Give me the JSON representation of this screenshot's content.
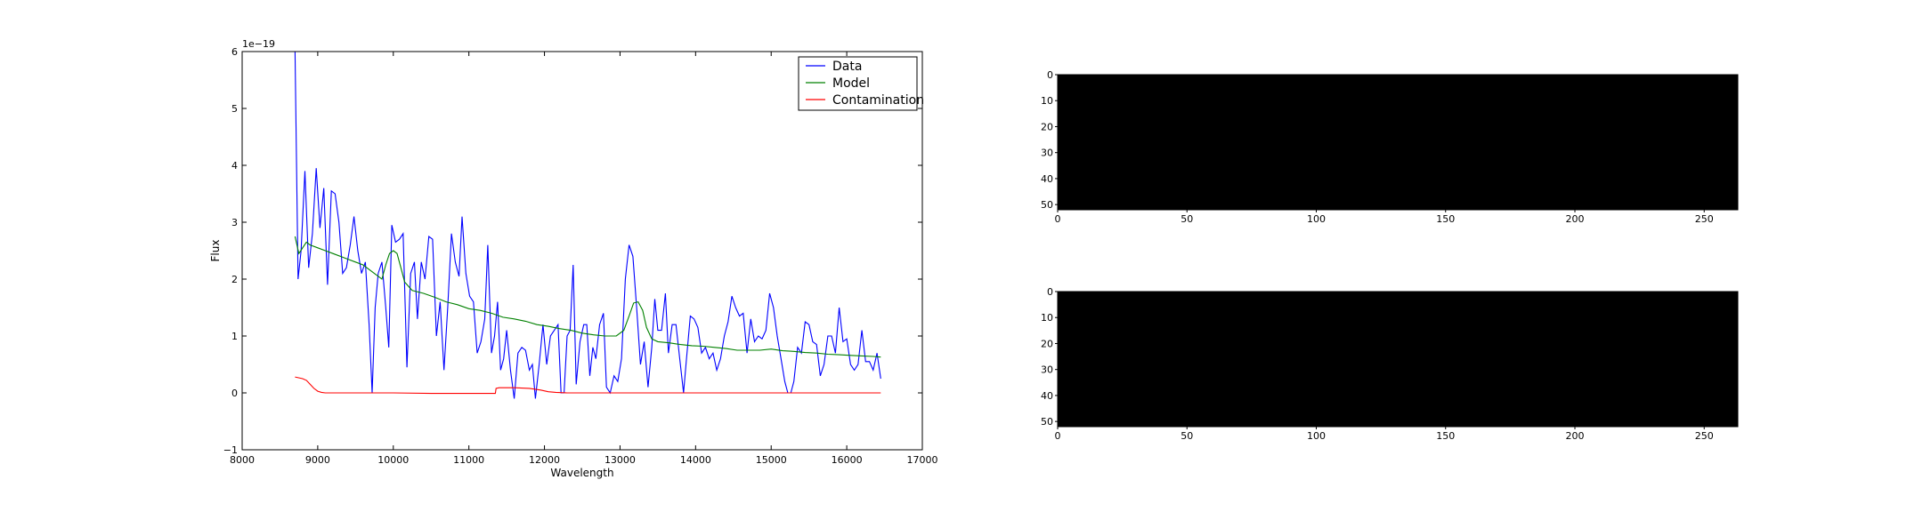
{
  "chart_data": [
    {
      "type": "line",
      "title": "",
      "xlabel": "Wavelength",
      "ylabel": "Flux",
      "xlim": [
        8000,
        17000
      ],
      "ylim": [
        -1,
        6
      ],
      "offset_text": "1e−19",
      "xticks": [
        8000,
        9000,
        10000,
        11000,
        12000,
        13000,
        14000,
        15000,
        16000,
        17000
      ],
      "yticks": [
        -1,
        0,
        1,
        2,
        3,
        4,
        5,
        6
      ],
      "grid": false,
      "legend_position": "top-right",
      "series": [
        {
          "name": "Data",
          "color": "#0000ff",
          "points": [
            [
              8700,
              6.0
            ],
            [
              8740,
              2.0
            ],
            [
              8780,
              2.5
            ],
            [
              8830,
              3.9
            ],
            [
              8880,
              2.2
            ],
            [
              8930,
              2.8
            ],
            [
              8980,
              3.95
            ],
            [
              9030,
              2.9
            ],
            [
              9080,
              3.6
            ],
            [
              9130,
              1.9
            ],
            [
              9180,
              3.55
            ],
            [
              9230,
              3.5
            ],
            [
              9280,
              3.0
            ],
            [
              9330,
              2.1
            ],
            [
              9380,
              2.2
            ],
            [
              9430,
              2.6
            ],
            [
              9480,
              3.1
            ],
            [
              9530,
              2.5
            ],
            [
              9580,
              2.1
            ],
            [
              9630,
              2.3
            ],
            [
              9680,
              1.2
            ],
            [
              9720,
              0.0
            ],
            [
              9760,
              1.5
            ],
            [
              9800,
              2.1
            ],
            [
              9850,
              2.3
            ],
            [
              9900,
              1.5
            ],
            [
              9940,
              0.8
            ],
            [
              9980,
              2.95
            ],
            [
              10030,
              2.65
            ],
            [
              10080,
              2.7
            ],
            [
              10130,
              2.8
            ],
            [
              10180,
              0.45
            ],
            [
              10230,
              2.1
            ],
            [
              10280,
              2.3
            ],
            [
              10320,
              1.3
            ],
            [
              10370,
              2.3
            ],
            [
              10420,
              2.0
            ],
            [
              10470,
              2.75
            ],
            [
              10520,
              2.7
            ],
            [
              10570,
              1.0
            ],
            [
              10620,
              1.6
            ],
            [
              10670,
              0.4
            ],
            [
              10720,
              1.5
            ],
            [
              10770,
              2.8
            ],
            [
              10820,
              2.3
            ],
            [
              10870,
              2.05
            ],
            [
              10910,
              3.1
            ],
            [
              10960,
              2.1
            ],
            [
              11010,
              1.7
            ],
            [
              11060,
              1.6
            ],
            [
              11110,
              0.7
            ],
            [
              11160,
              0.9
            ],
            [
              11210,
              1.3
            ],
            [
              11250,
              2.6
            ],
            [
              11300,
              0.7
            ],
            [
              11340,
              1.0
            ],
            [
              11380,
              1.6
            ],
            [
              11420,
              0.4
            ],
            [
              11460,
              0.6
            ],
            [
              11500,
              1.1
            ],
            [
              11550,
              0.4
            ],
            [
              11600,
              -0.1
            ],
            [
              11650,
              0.7
            ],
            [
              11700,
              0.8
            ],
            [
              11750,
              0.75
            ],
            [
              11800,
              0.4
            ],
            [
              11840,
              0.5
            ],
            [
              11880,
              -0.1
            ],
            [
              11930,
              0.5
            ],
            [
              11980,
              1.2
            ],
            [
              12030,
              0.5
            ],
            [
              12080,
              1.0
            ],
            [
              12130,
              1.1
            ],
            [
              12180,
              1.2
            ],
            [
              12220,
              0.0
            ],
            [
              12260,
              0.0
            ],
            [
              12300,
              1.0
            ],
            [
              12340,
              1.1
            ],
            [
              12380,
              2.25
            ],
            [
              12420,
              0.15
            ],
            [
              12470,
              0.9
            ],
            [
              12520,
              1.2
            ],
            [
              12560,
              1.2
            ],
            [
              12600,
              0.3
            ],
            [
              12640,
              0.8
            ],
            [
              12680,
              0.6
            ],
            [
              12730,
              1.2
            ],
            [
              12780,
              1.4
            ],
            [
              12820,
              0.1
            ],
            [
              12870,
              0.0
            ],
            [
              12920,
              0.3
            ],
            [
              12970,
              0.2
            ],
            [
              13020,
              0.6
            ],
            [
              13070,
              2.0
            ],
            [
              13120,
              2.6
            ],
            [
              13170,
              2.4
            ],
            [
              13220,
              1.5
            ],
            [
              13270,
              0.5
            ],
            [
              13320,
              0.9
            ],
            [
              13370,
              0.1
            ],
            [
              13420,
              0.8
            ],
            [
              13460,
              1.65
            ],
            [
              13500,
              1.1
            ],
            [
              13550,
              1.1
            ],
            [
              13600,
              1.75
            ],
            [
              13640,
              0.7
            ],
            [
              13690,
              1.2
            ],
            [
              13740,
              1.2
            ],
            [
              13790,
              0.6
            ],
            [
              13840,
              0.0
            ],
            [
              13880,
              0.6
            ],
            [
              13930,
              1.35
            ],
            [
              13980,
              1.3
            ],
            [
              14030,
              1.15
            ],
            [
              14080,
              0.7
            ],
            [
              14130,
              0.8
            ],
            [
              14180,
              0.6
            ],
            [
              14230,
              0.7
            ],
            [
              14280,
              0.4
            ],
            [
              14330,
              0.6
            ],
            [
              14380,
              1.0
            ],
            [
              14430,
              1.25
            ],
            [
              14480,
              1.7
            ],
            [
              14530,
              1.5
            ],
            [
              14580,
              1.35
            ],
            [
              14630,
              1.4
            ],
            [
              14680,
              0.7
            ],
            [
              14730,
              1.3
            ],
            [
              14780,
              0.9
            ],
            [
              14830,
              1.0
            ],
            [
              14880,
              0.95
            ],
            [
              14930,
              1.1
            ],
            [
              14980,
              1.75
            ],
            [
              15030,
              1.5
            ],
            [
              15080,
              1.0
            ],
            [
              15130,
              0.6
            ],
            [
              15180,
              0.2
            ],
            [
              15220,
              0.0
            ],
            [
              15260,
              0.0
            ],
            [
              15300,
              0.2
            ],
            [
              15350,
              0.8
            ],
            [
              15400,
              0.7
            ],
            [
              15450,
              1.25
            ],
            [
              15500,
              1.2
            ],
            [
              15550,
              0.9
            ],
            [
              15600,
              0.85
            ],
            [
              15650,
              0.3
            ],
            [
              15700,
              0.5
            ],
            [
              15750,
              1.0
            ],
            [
              15800,
              1.0
            ],
            [
              15850,
              0.7
            ],
            [
              15900,
              1.5
            ],
            [
              15950,
              0.9
            ],
            [
              16000,
              0.95
            ],
            [
              16050,
              0.5
            ],
            [
              16100,
              0.4
            ],
            [
              16150,
              0.5
            ],
            [
              16200,
              1.1
            ],
            [
              16250,
              0.55
            ],
            [
              16300,
              0.55
            ],
            [
              16350,
              0.4
            ],
            [
              16400,
              0.7
            ],
            [
              16450,
              0.25
            ]
          ]
        },
        {
          "name": "Model",
          "color": "#008000",
          "points": [
            [
              8700,
              2.75
            ],
            [
              8750,
              2.45
            ],
            [
              8800,
              2.55
            ],
            [
              8850,
              2.65
            ],
            [
              8900,
              2.6
            ],
            [
              9000,
              2.55
            ],
            [
              9100,
              2.5
            ],
            [
              9200,
              2.45
            ],
            [
              9300,
              2.4
            ],
            [
              9400,
              2.35
            ],
            [
              9500,
              2.3
            ],
            [
              9600,
              2.25
            ],
            [
              9700,
              2.15
            ],
            [
              9800,
              2.05
            ],
            [
              9850,
              2.0
            ],
            [
              9900,
              2.25
            ],
            [
              9950,
              2.45
            ],
            [
              10000,
              2.5
            ],
            [
              10050,
              2.45
            ],
            [
              10100,
              2.2
            ],
            [
              10150,
              1.95
            ],
            [
              10250,
              1.8
            ],
            [
              10400,
              1.75
            ],
            [
              10550,
              1.68
            ],
            [
              10700,
              1.6
            ],
            [
              10850,
              1.55
            ],
            [
              11000,
              1.48
            ],
            [
              11150,
              1.45
            ],
            [
              11300,
              1.4
            ],
            [
              11450,
              1.33
            ],
            [
              11600,
              1.3
            ],
            [
              11750,
              1.26
            ],
            [
              11900,
              1.2
            ],
            [
              12050,
              1.17
            ],
            [
              12200,
              1.13
            ],
            [
              12350,
              1.1
            ],
            [
              12500,
              1.05
            ],
            [
              12650,
              1.02
            ],
            [
              12800,
              1.0
            ],
            [
              12950,
              1.0
            ],
            [
              13050,
              1.1
            ],
            [
              13120,
              1.35
            ],
            [
              13180,
              1.58
            ],
            [
              13240,
              1.6
            ],
            [
              13300,
              1.45
            ],
            [
              13350,
              1.15
            ],
            [
              13420,
              0.95
            ],
            [
              13500,
              0.9
            ],
            [
              13650,
              0.88
            ],
            [
              13800,
              0.85
            ],
            [
              13950,
              0.83
            ],
            [
              14100,
              0.82
            ],
            [
              14250,
              0.8
            ],
            [
              14400,
              0.78
            ],
            [
              14550,
              0.75
            ],
            [
              14700,
              0.75
            ],
            [
              14850,
              0.75
            ],
            [
              15000,
              0.77
            ],
            [
              15150,
              0.74
            ],
            [
              15300,
              0.73
            ],
            [
              15450,
              0.71
            ],
            [
              15600,
              0.7
            ],
            [
              15750,
              0.68
            ],
            [
              15900,
              0.67
            ],
            [
              16050,
              0.66
            ],
            [
              16200,
              0.65
            ],
            [
              16350,
              0.64
            ],
            [
              16450,
              0.63
            ]
          ]
        },
        {
          "name": "Contamination",
          "color": "#ff0000",
          "points": [
            [
              8700,
              0.28
            ],
            [
              8800,
              0.25
            ],
            [
              8850,
              0.22
            ],
            [
              8900,
              0.15
            ],
            [
              8950,
              0.08
            ],
            [
              9000,
              0.03
            ],
            [
              9050,
              0.01
            ],
            [
              9100,
              0.0
            ],
            [
              9500,
              0.0
            ],
            [
              10000,
              0.0
            ],
            [
              10500,
              -0.01
            ],
            [
              11000,
              -0.01
            ],
            [
              11350,
              -0.01
            ],
            [
              11360,
              0.08
            ],
            [
              11400,
              0.09
            ],
            [
              11600,
              0.09
            ],
            [
              11800,
              0.08
            ],
            [
              11950,
              0.05
            ],
            [
              12050,
              0.02
            ],
            [
              12150,
              0.01
            ],
            [
              12300,
              0.0
            ],
            [
              13000,
              0.0
            ],
            [
              14000,
              0.0
            ],
            [
              15000,
              0.0
            ],
            [
              16000,
              0.0
            ],
            [
              16450,
              0.0
            ]
          ]
        }
      ]
    },
    {
      "type": "heatmap",
      "color": "#000000",
      "xlim": [
        0,
        263
      ],
      "ylim": [
        0,
        52
      ],
      "xticks": [
        0,
        50,
        100,
        150,
        200,
        250
      ],
      "yticks": [
        0,
        10,
        20,
        30,
        40,
        50
      ]
    },
    {
      "type": "heatmap",
      "color": "#000000",
      "xlim": [
        0,
        263
      ],
      "ylim": [
        0,
        52
      ],
      "xticks": [
        0,
        50,
        100,
        150,
        200,
        250
      ],
      "yticks": [
        0,
        10,
        20,
        30,
        40,
        50
      ]
    }
  ]
}
